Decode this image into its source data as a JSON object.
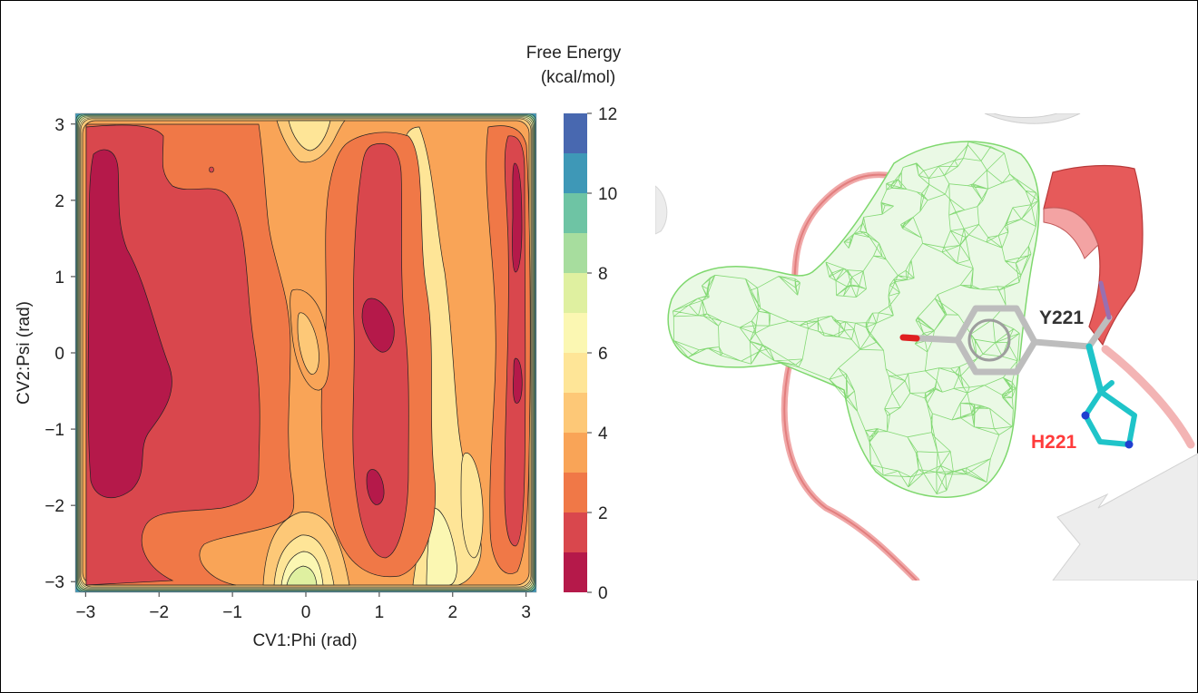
{
  "chart_data": {
    "type": "heatmap",
    "subtype": "filled-contour",
    "xlabel": "CV1:Phi (rad)",
    "ylabel": "CV2:Psi (rad)",
    "xlim": [
      -3.14,
      3.14
    ],
    "ylim": [
      -3.14,
      3.14
    ],
    "x_ticks": [
      -3,
      -2,
      -1,
      0,
      1,
      2,
      3
    ],
    "y_ticks": [
      -3,
      -2,
      -1,
      0,
      1,
      2,
      3
    ],
    "colorbar": {
      "title_line1": "Free Energy",
      "title_line2": "(kcal/mol)",
      "range": [
        0,
        12
      ],
      "ticks": [
        0,
        2,
        4,
        6,
        8,
        10,
        12
      ],
      "levels": [
        0,
        1,
        2,
        3,
        4,
        5,
        6,
        7,
        8,
        9,
        10,
        11,
        12
      ],
      "colors": [
        "#b5194a",
        "#d9474d",
        "#f07847",
        "#f9a457",
        "#fdc877",
        "#fee597",
        "#fbf7b2",
        "#dff0a0",
        "#a7dd9e",
        "#6ec4a4",
        "#3e98b7",
        "#4868b0"
      ]
    },
    "grid": false,
    "legend": "none"
  },
  "structure_panel": {
    "label_tyr": "Y221",
    "label_his": "H221",
    "colors": {
      "mesh": "#7fd86e",
      "ribbon": "#e98f8f",
      "tyr": "#bbbbbb",
      "his": "#1fc4c9",
      "his_label": "#ff3b3b",
      "tyr_label": "#333333"
    }
  }
}
